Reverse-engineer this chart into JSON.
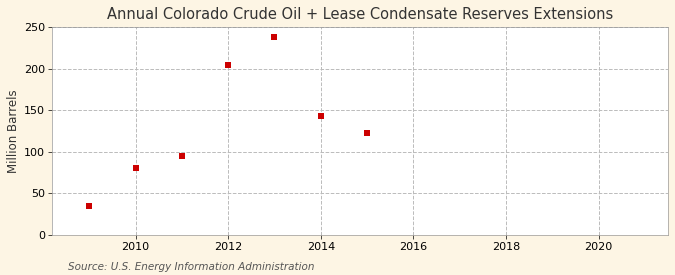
{
  "title": "Annual Colorado Crude Oil + Lease Condensate Reserves Extensions",
  "ylabel": "Million Barrels",
  "source": "Source: U.S. Energy Information Administration",
  "years": [
    2009,
    2010,
    2011,
    2012,
    2013,
    2014,
    2015
  ],
  "values": [
    35,
    80,
    95,
    205,
    238,
    143,
    122
  ],
  "marker_color": "#cc0000",
  "marker_size": 25,
  "plot_bg_color": "#ffffff",
  "fig_bg_color": "#fdf5e4",
  "grid_color": "#bbbbbb",
  "title_color": "#333333",
  "xlim": [
    2008.2,
    2021.5
  ],
  "ylim": [
    0,
    250
  ],
  "xticks": [
    2010,
    2012,
    2014,
    2016,
    2018,
    2020
  ],
  "yticks": [
    0,
    50,
    100,
    150,
    200,
    250
  ],
  "title_fontsize": 10.5,
  "label_fontsize": 8.5,
  "tick_fontsize": 8,
  "source_fontsize": 7.5
}
